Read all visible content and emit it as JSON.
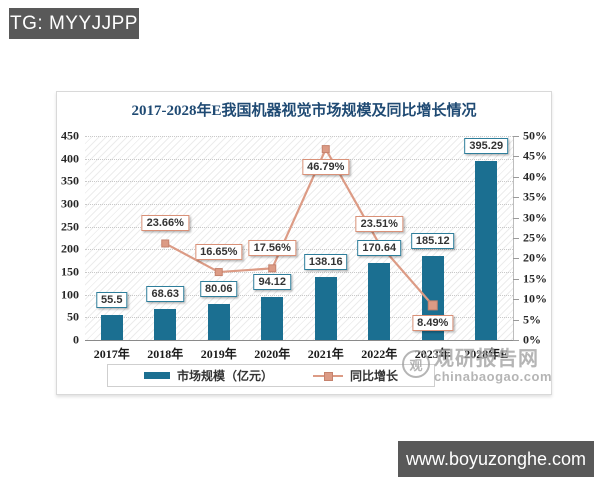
{
  "overlays": {
    "top_tag": "TG: MYYJJPP",
    "bottom_site": "www.boyuzonghe.com"
  },
  "watermark": {
    "logo_char": "观",
    "brand": "观研报告网",
    "domain": "chinabaogao.com"
  },
  "chart_data": {
    "type": "bar+line",
    "title": "2017-2028年E我国机器视觉市场规模及同比增长情况",
    "categories": [
      "2017年",
      "2018年",
      "2019年",
      "2020年",
      "2021年",
      "2022年",
      "2023年",
      "2028年E"
    ],
    "left_axis": {
      "min": 0,
      "max": 450,
      "step": 50,
      "tick_labels": [
        "0",
        "50",
        "100",
        "150",
        "200",
        "250",
        "300",
        "350",
        "400",
        "450"
      ]
    },
    "right_axis": {
      "min": 0,
      "max": 50,
      "step": 5,
      "tick_labels": [
        "0%",
        "5%",
        "10%",
        "15%",
        "20%",
        "25%",
        "30%",
        "35%",
        "40%",
        "45%",
        "50%"
      ]
    },
    "grid": "horizontal-dotted",
    "plot_background": "diagonal-hatch",
    "legend_position": "bottom",
    "series": [
      {
        "name": "市场规模（亿元）",
        "type": "bar",
        "axis": "left",
        "color": "#1b6f91",
        "values": [
          55.5,
          68.63,
          80.06,
          94.12,
          138.16,
          170.64,
          185.12,
          395.29
        ],
        "value_labels": [
          "55.5",
          "68.63",
          "80.06",
          "94.12",
          "138.16",
          "170.64",
          "185.12",
          "395.29"
        ]
      },
      {
        "name": "同比增长",
        "type": "line",
        "axis": "right",
        "color": "#dc9b85",
        "points": [
          {
            "category_index": 1,
            "value": 23.66,
            "label": "23.66%",
            "label_side": "above"
          },
          {
            "category_index": 2,
            "value": 16.65,
            "label": "16.65%",
            "label_side": "above"
          },
          {
            "category_index": 3,
            "value": 17.56,
            "label": "17.56%",
            "label_side": "above"
          },
          {
            "category_index": 4,
            "value": 46.79,
            "label": "46.79%",
            "label_side": "below"
          },
          {
            "category_index": 5,
            "value": 23.51,
            "label": "23.51%",
            "label_side": "above"
          },
          {
            "category_index": 6,
            "value": 8.49,
            "label": "8.49%",
            "label_side": "below"
          }
        ]
      }
    ]
  }
}
